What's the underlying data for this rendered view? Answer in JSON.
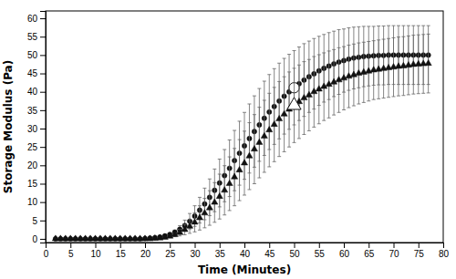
{
  "chart_data": {
    "type": "scatter",
    "title": "",
    "xlabel": "Time (Minutes)",
    "ylabel": "Storage Modulus (Pa)",
    "xlim": [
      0,
      80
    ],
    "ylim": [
      -1,
      62
    ],
    "xticks": [
      0,
      5,
      10,
      15,
      20,
      25,
      30,
      35,
      40,
      45,
      50,
      55,
      60,
      65,
      70,
      75,
      80
    ],
    "yticks": [
      0,
      5,
      10,
      15,
      20,
      25,
      30,
      35,
      40,
      45,
      50,
      55,
      60
    ],
    "grid": false,
    "x": [
      2,
      3,
      4,
      5,
      6,
      7,
      8,
      9,
      10,
      11,
      12,
      13,
      14,
      15,
      16,
      17,
      18,
      19,
      20,
      21,
      22,
      23,
      24,
      25,
      26,
      27,
      28,
      29,
      30,
      31,
      32,
      33,
      34,
      35,
      36,
      37,
      38,
      39,
      40,
      41,
      42,
      43,
      44,
      45,
      46,
      47,
      48,
      49,
      50,
      51,
      52,
      53,
      54,
      55,
      56,
      57,
      58,
      59,
      60,
      61,
      62,
      63,
      64,
      65,
      66,
      67,
      68,
      69,
      70,
      71,
      72,
      73,
      74,
      75,
      76,
      77
    ],
    "series": [
      {
        "marker": "circle",
        "color": "#111111",
        "open_marker_x": 50,
        "values": [
          0.0,
          0.0,
          0.0,
          0.0,
          0.0,
          0.0,
          0.0,
          0.0,
          0.0,
          0.0,
          0.0,
          0.0,
          0.0,
          0.0,
          0.0,
          0.0,
          0.0,
          0.0,
          0.1,
          0.2,
          0.3,
          0.5,
          0.8,
          1.2,
          1.8,
          2.6,
          3.6,
          4.8,
          6.2,
          7.8,
          9.5,
          11.3,
          13.2,
          15.2,
          17.2,
          19.2,
          21.3,
          23.3,
          25.3,
          27.3,
          29.2,
          31.0,
          32.8,
          34.5,
          36.0,
          37.5,
          38.8,
          40.0,
          41.1,
          42.2,
          43.2,
          44.1,
          44.9,
          45.7,
          46.4,
          47.0,
          47.6,
          48.1,
          48.5,
          48.9,
          49.2,
          49.4,
          49.6,
          49.7,
          49.8,
          49.9,
          49.9,
          50.0,
          50.0,
          50.0,
          50.0,
          50.0,
          50.0,
          50.0,
          50.0,
          50.0
        ],
        "errors": [
          0.0,
          0.0,
          0.0,
          0.0,
          0.0,
          0.0,
          0.0,
          0.0,
          0.0,
          0.0,
          0.0,
          0.0,
          0.0,
          0.0,
          0.0,
          0.0,
          0.0,
          0.0,
          0.0,
          0.0,
          0.0,
          0.0,
          0.1,
          0.3,
          0.6,
          1.0,
          1.5,
          2.1,
          2.8,
          3.5,
          4.3,
          5.0,
          5.8,
          6.5,
          7.1,
          7.7,
          8.2,
          8.7,
          9.1,
          9.4,
          9.7,
          9.9,
          10.1,
          10.2,
          10.3,
          10.3,
          10.3,
          10.2,
          10.1,
          10.0,
          9.9,
          9.7,
          9.6,
          9.4,
          9.2,
          9.1,
          8.9,
          8.8,
          8.6,
          8.5,
          8.4,
          8.3,
          8.2,
          8.1,
          8.0,
          8.0,
          8.0,
          8.0,
          8.0,
          8.0,
          8.0,
          8.0,
          8.0,
          8.0,
          8.0,
          8.0
        ]
      },
      {
        "marker": "triangle",
        "color": "#111111",
        "open_marker_x": 50,
        "values": [
          0.0,
          0.0,
          0.0,
          0.0,
          0.0,
          0.0,
          0.0,
          0.0,
          0.0,
          0.0,
          0.0,
          0.0,
          0.0,
          0.0,
          0.0,
          0.0,
          0.0,
          0.0,
          0.0,
          0.0,
          0.1,
          0.2,
          0.4,
          0.7,
          1.1,
          1.7,
          2.5,
          3.4,
          4.5,
          5.7,
          7.0,
          8.4,
          9.9,
          11.5,
          13.2,
          15.0,
          16.8,
          18.7,
          20.6,
          22.5,
          24.4,
          26.2,
          27.9,
          29.6,
          31.1,
          32.6,
          33.9,
          35.2,
          36.3,
          37.3,
          38.3,
          39.1,
          40.0,
          40.7,
          41.4,
          42.0,
          42.6,
          43.2,
          43.7,
          44.2,
          44.6,
          45.0,
          45.3,
          45.6,
          45.9,
          46.1,
          46.3,
          46.5,
          46.7,
          46.9,
          47.0,
          47.2,
          47.4,
          47.5,
          47.6,
          47.7
        ],
        "errors": [
          0.0,
          0.0,
          0.0,
          0.0,
          0.0,
          0.0,
          0.0,
          0.0,
          0.0,
          0.0,
          0.0,
          0.0,
          0.0,
          0.0,
          0.0,
          0.0,
          0.0,
          0.0,
          0.0,
          0.0,
          0.0,
          0.0,
          0.1,
          0.3,
          0.5,
          0.9,
          1.4,
          1.9,
          2.6,
          3.3,
          4.0,
          4.7,
          5.4,
          6.1,
          6.7,
          7.3,
          7.8,
          8.3,
          8.7,
          9.1,
          9.4,
          9.6,
          9.8,
          10.0,
          10.1,
          10.2,
          10.2,
          10.2,
          10.1,
          10.0,
          9.9,
          9.7,
          9.6,
          9.4,
          9.2,
          9.1,
          8.9,
          8.8,
          8.6,
          8.5,
          8.4,
          8.3,
          8.2,
          8.1,
          8.0,
          8.0,
          8.0,
          8.0,
          8.0,
          8.0,
          8.0,
          8.0,
          8.0,
          8.0,
          8.0,
          8.0
        ]
      }
    ]
  }
}
